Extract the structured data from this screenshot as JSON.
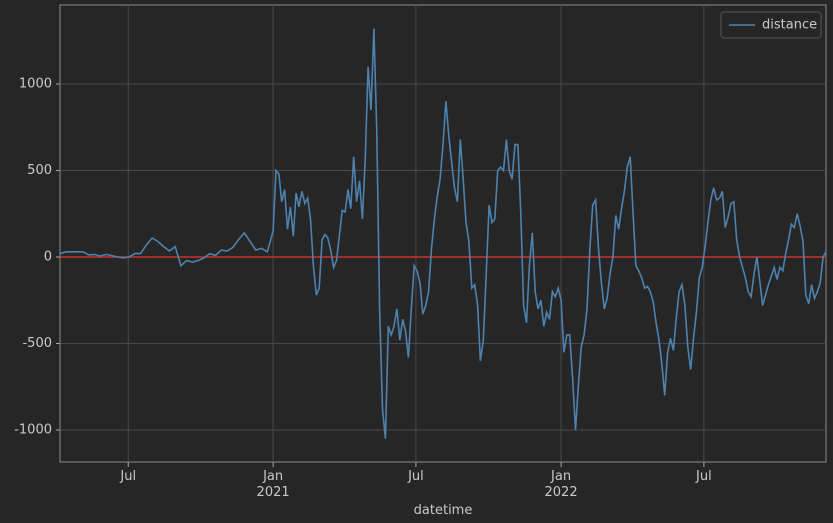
{
  "chart_data": {
    "type": "line",
    "xlabel": "datetime",
    "x": [
      2020.26,
      2020.28,
      2020.3,
      2020.32,
      2020.34,
      2020.36,
      2020.38,
      2020.4,
      2020.42,
      2020.44,
      2020.46,
      2020.48,
      2020.5,
      2020.52,
      2020.54,
      2020.56,
      2020.58,
      2020.6,
      2020.62,
      2020.64,
      2020.66,
      2020.68,
      2020.7,
      2020.72,
      2020.74,
      2020.76,
      2020.78,
      2020.8,
      2020.82,
      2020.84,
      2020.86,
      2020.88,
      2020.9,
      2020.92,
      2020.94,
      2020.96,
      2020.98,
      2021.0,
      2021.01,
      2021.02,
      2021.03,
      2021.04,
      2021.05,
      2021.06,
      2021.07,
      2021.08,
      2021.09,
      2021.1,
      2021.11,
      2021.12,
      2021.13,
      2021.14,
      2021.15,
      2021.16,
      2021.17,
      2021.18,
      2021.19,
      2021.2,
      2021.21,
      2021.22,
      2021.23,
      2021.24,
      2021.25,
      2021.26,
      2021.27,
      2021.28,
      2021.29,
      2021.3,
      2021.31,
      2021.32,
      2021.33,
      2021.34,
      2021.35,
      2021.36,
      2021.37,
      2021.38,
      2021.39,
      2021.4,
      2021.41,
      2021.42,
      2021.43,
      2021.44,
      2021.45,
      2021.46,
      2021.47,
      2021.48,
      2021.49,
      2021.5,
      2021.51,
      2021.52,
      2021.53,
      2021.54,
      2021.55,
      2021.56,
      2021.57,
      2021.58,
      2021.59,
      2021.6,
      2021.61,
      2021.62,
      2021.63,
      2021.64,
      2021.65,
      2021.66,
      2021.67,
      2021.68,
      2021.69,
      2021.7,
      2021.71,
      2021.72,
      2021.73,
      2021.74,
      2021.75,
      2021.76,
      2021.77,
      2021.78,
      2021.79,
      2021.8,
      2021.81,
      2021.82,
      2021.83,
      2021.84,
      2021.85,
      2021.86,
      2021.87,
      2021.88,
      2021.89,
      2021.9,
      2021.91,
      2021.92,
      2021.93,
      2021.94,
      2021.95,
      2021.96,
      2021.97,
      2021.98,
      2021.99,
      2022.0,
      2022.01,
      2022.02,
      2022.03,
      2022.04,
      2022.05,
      2022.06,
      2022.07,
      2022.08,
      2022.09,
      2022.1,
      2022.11,
      2022.12,
      2022.13,
      2022.14,
      2022.15,
      2022.16,
      2022.17,
      2022.18,
      2022.19,
      2022.2,
      2022.21,
      2022.22,
      2022.23,
      2022.24,
      2022.25,
      2022.26,
      2022.27,
      2022.28,
      2022.29,
      2022.3,
      2022.31,
      2022.32,
      2022.33,
      2022.34,
      2022.35,
      2022.36,
      2022.37,
      2022.38,
      2022.39,
      2022.4,
      2022.41,
      2022.42,
      2022.43,
      2022.44,
      2022.45,
      2022.46,
      2022.47,
      2022.48,
      2022.49,
      2022.5,
      2022.51,
      2022.52,
      2022.53,
      2022.54,
      2022.55,
      2022.56,
      2022.57,
      2022.58,
      2022.59,
      2022.6,
      2022.61,
      2022.62,
      2022.63,
      2022.64,
      2022.65,
      2022.66,
      2022.67,
      2022.68,
      2022.69,
      2022.7,
      2022.71,
      2022.72,
      2022.73,
      2022.74,
      2022.75,
      2022.76,
      2022.77,
      2022.78,
      2022.79,
      2022.8,
      2022.81,
      2022.82,
      2022.83,
      2022.84,
      2022.85,
      2022.86,
      2022.87,
      2022.88,
      2022.89,
      2022.9,
      2022.91,
      2022.92
    ],
    "series": [
      {
        "name": "distance",
        "color": "#4d82ae",
        "values": [
          20,
          30,
          30,
          30,
          30,
          12,
          15,
          5,
          15,
          8,
          0,
          -5,
          0,
          20,
          20,
          70,
          110,
          90,
          60,
          35,
          60,
          -50,
          -20,
          -30,
          -20,
          -5,
          20,
          10,
          40,
          35,
          55,
          100,
          140,
          90,
          40,
          50,
          30,
          150,
          500,
          480,
          320,
          390,
          160,
          290,
          120,
          370,
          290,
          380,
          310,
          340,
          220,
          -50,
          -220,
          -180,
          100,
          130,
          110,
          40,
          -60,
          -20,
          120,
          270,
          260,
          390,
          280,
          580,
          320,
          440,
          220,
          560,
          1100,
          850,
          1320,
          720,
          -300,
          -880,
          -1050,
          -400,
          -450,
          -400,
          -300,
          -480,
          -360,
          -430,
          -580,
          -300,
          -50,
          -80,
          -150,
          -330,
          -280,
          -200,
          50,
          220,
          350,
          450,
          650,
          900,
          700,
          550,
          400,
          320,
          680,
          450,
          200,
          90,
          -180,
          -160,
          -280,
          -600,
          -480,
          -100,
          300,
          200,
          220,
          500,
          520,
          500,
          680,
          500,
          450,
          650,
          650,
          250,
          -280,
          -380,
          -50,
          140,
          -200,
          -300,
          -250,
          -400,
          -320,
          -360,
          -200,
          -230,
          -180,
          -250,
          -550,
          -450,
          -450,
          -700,
          -1000,
          -750,
          -520,
          -450,
          -300,
          50,
          300,
          330,
          50,
          -150,
          -300,
          -240,
          -100,
          0,
          240,
          160,
          280,
          380,
          520,
          580,
          250,
          -50,
          -80,
          -120,
          -180,
          -170,
          -200,
          -260,
          -380,
          -480,
          -620,
          -800,
          -550,
          -470,
          -540,
          -350,
          -200,
          -160,
          -280,
          -520,
          -650,
          -470,
          -320,
          -120,
          -60,
          60,
          200,
          330,
          400,
          330,
          340,
          380,
          170,
          230,
          310,
          320,
          100,
          0,
          -60,
          -120,
          -200,
          -230,
          -100,
          0,
          -140,
          -280,
          -220,
          -160,
          -110,
          -60,
          -130,
          -60,
          -80,
          20,
          100,
          190,
          170,
          250,
          180,
          90,
          -220,
          -270,
          -160,
          -240,
          -200,
          -150,
          0,
          30
        ]
      }
    ],
    "xlim": [
      2020.26,
      2022.92
    ],
    "xticks": [
      {
        "value": 2020.497,
        "label": "Jul"
      },
      {
        "value": 2021,
        "label": "Jan\n2021"
      },
      {
        "value": 2021.496,
        "label": "Jul"
      },
      {
        "value": 2022,
        "label": "Jan\n2022"
      },
      {
        "value": 2022.496,
        "label": "Jul"
      }
    ],
    "ylim": [
      -1185,
      1457
    ],
    "yticks": [
      -1000,
      -500,
      0,
      500,
      1000
    ],
    "grid": true,
    "legend": "upper right",
    "hline": {
      "y": 0,
      "color": "#c8312b"
    }
  }
}
